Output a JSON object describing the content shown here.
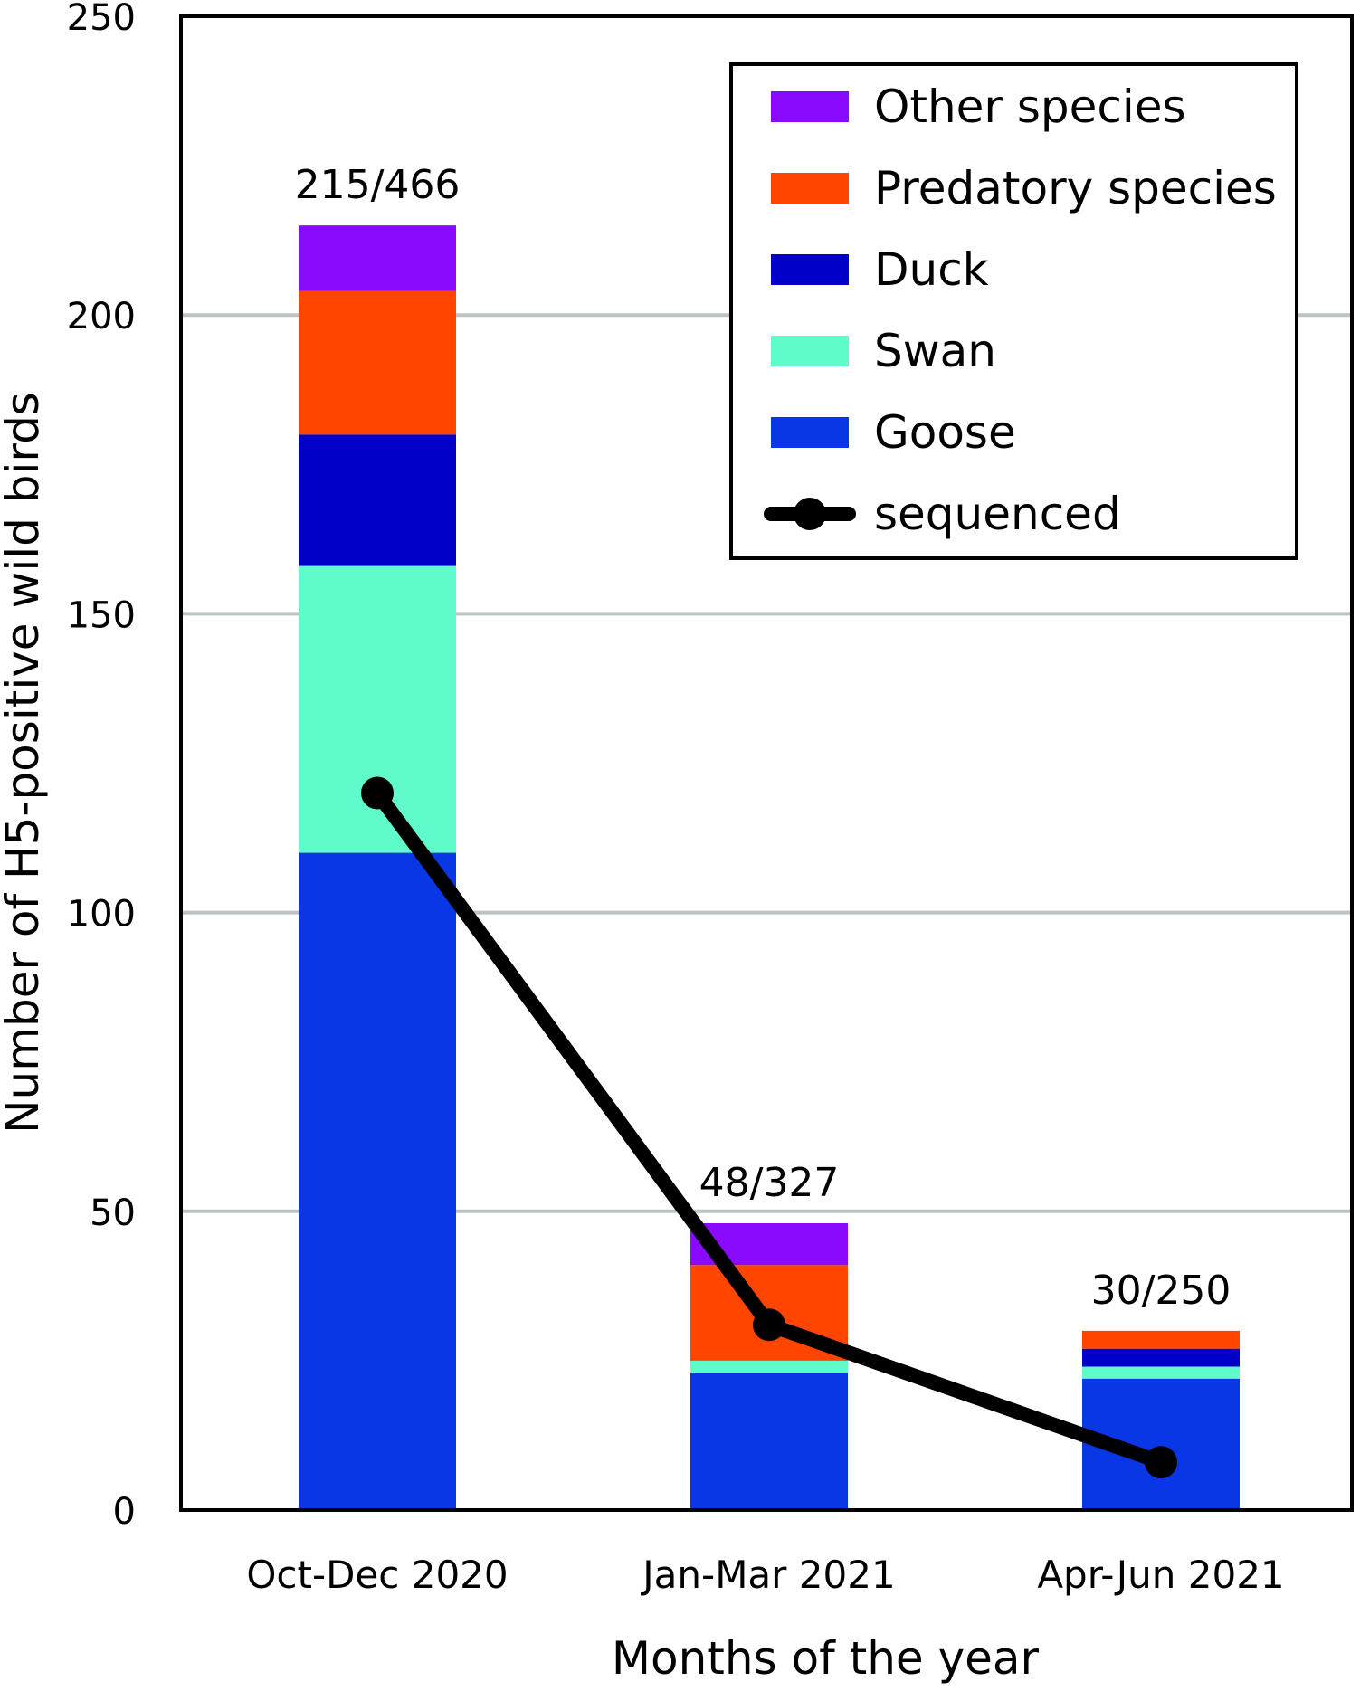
{
  "chart_data": {
    "type": "bar",
    "stacked": true,
    "xlabel": "Months of the year",
    "ylabel": "Number of H5-positive wild birds",
    "ylim": [
      0,
      250
    ],
    "yticks": [
      0,
      50,
      100,
      150,
      200,
      250
    ],
    "grid": true,
    "legend_position": "top-right",
    "categories": [
      "Oct-Dec 2020",
      "Jan-Mar 2021",
      "Apr-Jun 2021"
    ],
    "bar_labels": [
      "215/466",
      "48/327",
      "30/250"
    ],
    "series": [
      {
        "name": "Goose",
        "color": "#0a37e6",
        "values": [
          110,
          23,
          22
        ]
      },
      {
        "name": "Swan",
        "color": "#5ffbca",
        "values": [
          48,
          2,
          2
        ]
      },
      {
        "name": "Duck",
        "color": "#0000c8",
        "values": [
          22,
          0,
          3
        ]
      },
      {
        "name": "Predatory species",
        "color": "#ff4500",
        "values": [
          24,
          16,
          3
        ]
      },
      {
        "name": "Other species",
        "color": "#8a0aff",
        "values": [
          11,
          7,
          0
        ]
      }
    ],
    "line": {
      "name": "sequenced",
      "color": "#000000",
      "values": [
        120,
        31,
        8
      ]
    },
    "legend_order": [
      "Other species",
      "Predatory species",
      "Duck",
      "Swan",
      "Goose",
      "sequenced"
    ]
  }
}
